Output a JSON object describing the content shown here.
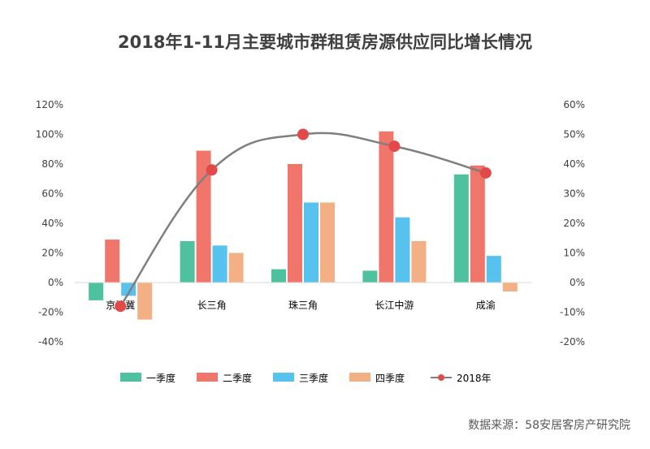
{
  "chart_data": {
    "type": "bar",
    "title": "2018年1-11月主要城市群租赁房源供应同比增长情况",
    "categories": [
      "京津冀",
      "长三角",
      "珠三角",
      "长江中游",
      "成渝"
    ],
    "series": [
      {
        "name": "一季度",
        "axis": "left",
        "color": "#4ec19e",
        "values": [
          -12,
          28,
          9,
          8,
          73
        ]
      },
      {
        "name": "二季度",
        "axis": "left",
        "color": "#f0756a",
        "values": [
          29,
          89,
          80,
          102,
          79
        ]
      },
      {
        "name": "三季度",
        "axis": "left",
        "color": "#57c2ee",
        "values": [
          -9,
          25,
          54,
          44,
          18
        ]
      },
      {
        "name": "四季度",
        "axis": "left",
        "color": "#f3b084",
        "values": [
          -25,
          20,
          54,
          28,
          -6
        ]
      },
      {
        "name": "2018年",
        "axis": "right",
        "type": "line",
        "color": "#e24a4a",
        "values": [
          -8,
          38,
          50,
          46,
          37
        ]
      }
    ],
    "y_left": {
      "range": [
        -40,
        120
      ],
      "ticks": [
        "-40%",
        "-20%",
        "0%",
        "20%",
        "40%",
        "60%",
        "80%",
        "100%",
        "120%"
      ]
    },
    "y_right": {
      "range": [
        -20,
        60
      ],
      "ticks": [
        "-20%",
        "-10%",
        "0%",
        "10%",
        "20%",
        "30%",
        "40%",
        "50%",
        "60%"
      ]
    },
    "grid": false,
    "legend_position": "bottom",
    "source": "数据来源：58安居客房产研究院"
  }
}
